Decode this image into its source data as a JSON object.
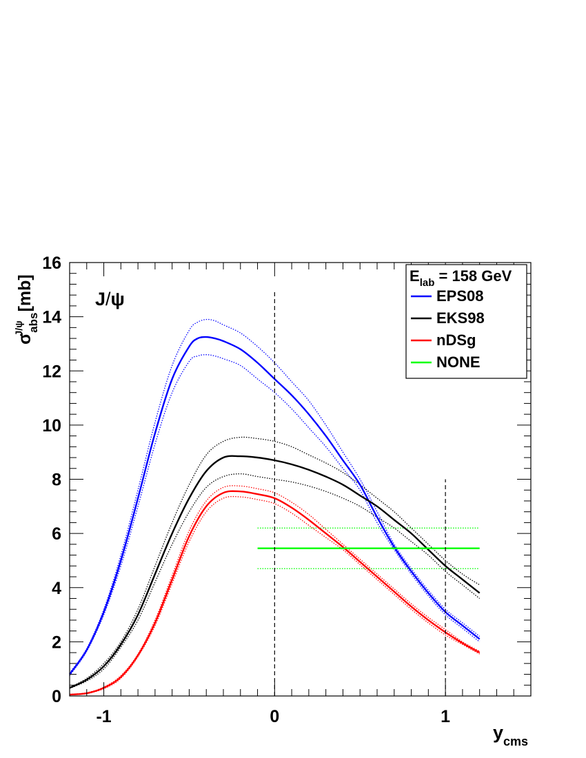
{
  "chart_data": {
    "type": "line",
    "panel_label": {
      "particle": "J",
      "slash": "/",
      "psi": "ψ"
    },
    "xlabel": {
      "symbol": "y",
      "subscript": "cms"
    },
    "ylabel": {
      "symbol": "σ",
      "subscript": "abs",
      "superscript": "J/ψ",
      "unit": " [mb]"
    },
    "xlim": [
      -1.2,
      1.5
    ],
    "ylim": [
      0,
      16
    ],
    "x_ticks": [
      -1,
      0,
      1
    ],
    "x_tick_labels": [
      "-1",
      "0",
      "1"
    ],
    "y_ticks": [
      0,
      2,
      4,
      6,
      8,
      10,
      12,
      14,
      16
    ],
    "y_tick_labels": [
      "0",
      "2",
      "4",
      "6",
      "8",
      "10",
      "12",
      "14",
      "16"
    ],
    "vertical_lines": [
      {
        "x": 0,
        "y_range": [
          0,
          15
        ]
      },
      {
        "x": 1,
        "y_range": [
          0,
          8
        ]
      }
    ],
    "legend": {
      "position": "top-right",
      "header": {
        "prefix": "E",
        "subscript": "lab",
        "suffix": " = 158 GeV"
      },
      "entries": [
        {
          "label": "EPS08",
          "color": "#0000ff"
        },
        {
          "label": "EKS98",
          "color": "#000000"
        },
        {
          "label": "nDSg",
          "color": "#ff0000"
        },
        {
          "label": "NONE",
          "color": "#00ff00"
        }
      ]
    },
    "series": [
      {
        "name": "EPS08",
        "color": "#0000ff",
        "x": [
          -1.2,
          -1.1,
          -1.0,
          -0.9,
          -0.8,
          -0.7,
          -0.6,
          -0.5,
          -0.45,
          -0.4,
          -0.35,
          -0.3,
          -0.2,
          -0.1,
          0.0,
          0.1,
          0.2,
          0.3,
          0.4,
          0.5,
          0.6,
          0.7,
          0.8,
          0.9,
          1.0,
          1.1,
          1.2
        ],
        "central": [
          0.8,
          1.7,
          3.1,
          5.0,
          7.3,
          9.7,
          11.7,
          12.9,
          13.2,
          13.25,
          13.2,
          13.1,
          12.8,
          12.3,
          11.7,
          11.1,
          10.4,
          9.6,
          8.7,
          7.8,
          6.6,
          5.5,
          4.6,
          3.8,
          3.1,
          2.6,
          2.1
        ],
        "upper": [
          0.85,
          1.75,
          3.2,
          5.2,
          7.6,
          10.1,
          12.2,
          13.5,
          13.8,
          13.9,
          13.85,
          13.7,
          13.4,
          12.9,
          12.3,
          11.6,
          10.9,
          10.0,
          9.0,
          8.0,
          6.8,
          5.6,
          4.7,
          3.9,
          3.2,
          2.7,
          2.2
        ],
        "lower": [
          0.75,
          1.65,
          3.0,
          4.8,
          7.0,
          9.3,
          11.2,
          12.35,
          12.55,
          12.6,
          12.55,
          12.45,
          12.2,
          11.7,
          11.2,
          10.6,
          9.9,
          9.2,
          8.4,
          7.6,
          6.4,
          5.4,
          4.5,
          3.7,
          3.0,
          2.5,
          2.0
        ]
      },
      {
        "name": "EKS98",
        "color": "#000000",
        "x": [
          -1.2,
          -1.1,
          -1.0,
          -0.9,
          -0.8,
          -0.7,
          -0.6,
          -0.5,
          -0.4,
          -0.3,
          -0.2,
          -0.1,
          0.0,
          0.1,
          0.2,
          0.3,
          0.4,
          0.5,
          0.6,
          0.7,
          0.8,
          0.9,
          1.0,
          1.1,
          1.2
        ],
        "central": [
          0.3,
          0.6,
          1.1,
          1.9,
          3.0,
          4.5,
          6.0,
          7.3,
          8.3,
          8.8,
          8.85,
          8.8,
          8.7,
          8.55,
          8.35,
          8.1,
          7.8,
          7.4,
          7.0,
          6.5,
          6.0,
          5.4,
          4.8,
          4.3,
          3.8
        ],
        "upper": [
          0.32,
          0.65,
          1.2,
          2.0,
          3.2,
          4.8,
          6.4,
          7.8,
          8.9,
          9.4,
          9.55,
          9.5,
          9.4,
          9.2,
          8.9,
          8.6,
          8.25,
          7.8,
          7.3,
          6.8,
          6.2,
          5.6,
          5.0,
          4.5,
          4.1
        ],
        "lower": [
          0.28,
          0.55,
          1.0,
          1.8,
          2.8,
          4.2,
          5.6,
          6.8,
          7.7,
          8.1,
          8.2,
          8.1,
          8.0,
          7.9,
          7.75,
          7.55,
          7.3,
          7.0,
          6.6,
          6.2,
          5.7,
          5.2,
          4.6,
          4.1,
          3.6
        ]
      },
      {
        "name": "nDSg",
        "color": "#ff0000",
        "x": [
          -1.2,
          -1.1,
          -1.0,
          -0.9,
          -0.8,
          -0.7,
          -0.6,
          -0.5,
          -0.4,
          -0.3,
          -0.2,
          -0.1,
          0.0,
          0.1,
          0.2,
          0.3,
          0.4,
          0.5,
          0.6,
          0.7,
          0.8,
          0.9,
          1.0,
          1.1,
          1.2
        ],
        "central": [
          0.05,
          0.1,
          0.3,
          0.7,
          1.5,
          2.7,
          4.3,
          5.9,
          7.0,
          7.5,
          7.55,
          7.45,
          7.3,
          6.95,
          6.5,
          6.0,
          5.5,
          4.95,
          4.4,
          3.85,
          3.3,
          2.8,
          2.35,
          1.95,
          1.6
        ],
        "upper": [
          0.06,
          0.12,
          0.33,
          0.75,
          1.55,
          2.8,
          4.45,
          6.1,
          7.2,
          7.7,
          7.75,
          7.65,
          7.5,
          7.15,
          6.7,
          6.15,
          5.6,
          5.05,
          4.5,
          3.95,
          3.4,
          2.9,
          2.45,
          2.0,
          1.65
        ],
        "lower": [
          0.04,
          0.09,
          0.27,
          0.65,
          1.45,
          2.6,
          4.15,
          5.7,
          6.8,
          7.3,
          7.35,
          7.25,
          7.1,
          6.75,
          6.3,
          5.85,
          5.4,
          4.85,
          4.3,
          3.75,
          3.2,
          2.7,
          2.25,
          1.9,
          1.55
        ]
      },
      {
        "name": "NONE",
        "color": "#00ff00",
        "x": [
          -0.1,
          1.2
        ],
        "central": [
          5.45,
          5.45
        ],
        "upper": [
          6.2,
          6.2
        ],
        "lower": [
          4.7,
          4.7
        ]
      }
    ]
  }
}
